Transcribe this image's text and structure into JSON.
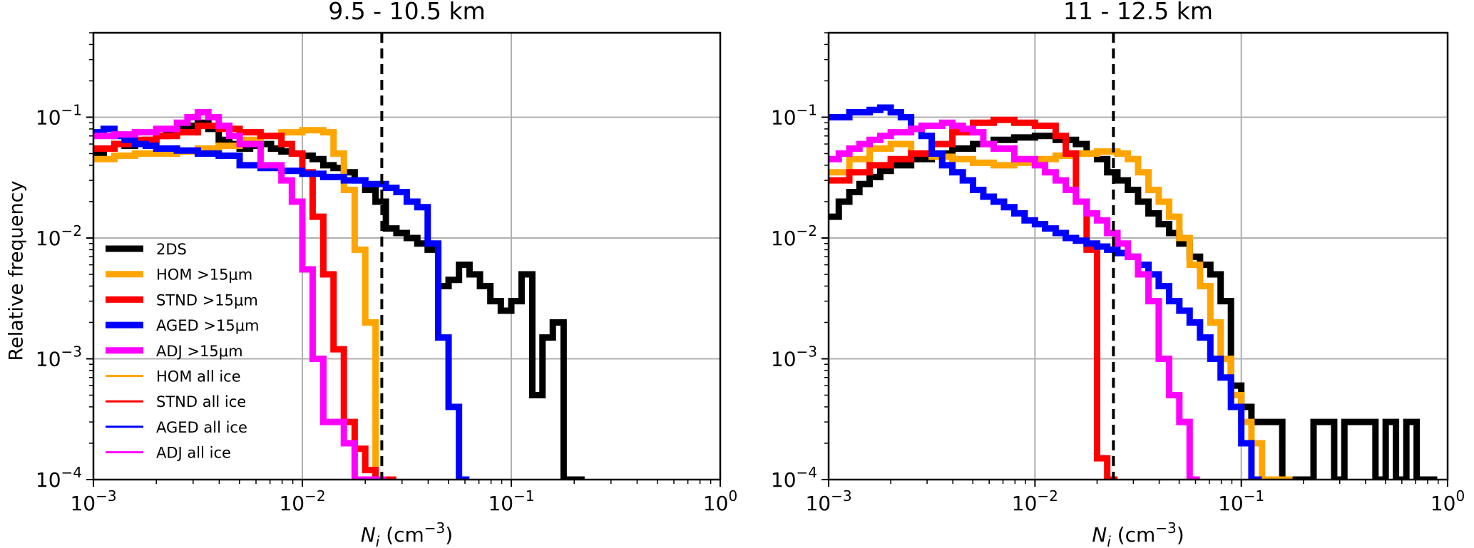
{
  "figure": {
    "ylabel": "Relative frequency",
    "xlabel_main": "N",
    "xlabel_sub": "i",
    "xlabel_unit_open": " (cm",
    "xlabel_unit_exp": "−3",
    "xlabel_unit_close": ")"
  },
  "colors": {
    "2DS": "#000000",
    "HOM": "#ffa500",
    "STND": "#ff0000",
    "AGED": "#0000ff",
    "ADJ": "#ff00ff",
    "grid": "#b0b0b0",
    "threshold": "#000000"
  },
  "legend": [
    {
      "label": "2DS",
      "color": "#000000",
      "style": "thick"
    },
    {
      "label": "HOM >15μm",
      "color": "#ffa500",
      "style": "thick"
    },
    {
      "label": "STND >15μm",
      "color": "#ff0000",
      "style": "thick"
    },
    {
      "label": "AGED >15μm",
      "color": "#0000ff",
      "style": "thick"
    },
    {
      "label": "ADJ >15μm",
      "color": "#ff00ff",
      "style": "thick"
    },
    {
      "label": "HOM all ice",
      "color": "#ffa500",
      "style": "thin"
    },
    {
      "label": "STND all ice",
      "color": "#ff0000",
      "style": "thin"
    },
    {
      "label": "AGED all ice",
      "color": "#0000ff",
      "style": "thin"
    },
    {
      "label": "ADJ all ice",
      "color": "#ff00ff",
      "style": "thin"
    }
  ],
  "ticks": {
    "x": [
      {
        "mant": "10",
        "exp": "−3",
        "v": 0.001
      },
      {
        "mant": "10",
        "exp": "−2",
        "v": 0.01
      },
      {
        "mant": "10",
        "exp": "−1",
        "v": 0.1
      },
      {
        "mant": "10",
        "exp": "0",
        "v": 1
      }
    ],
    "y": [
      {
        "mant": "10",
        "exp": "−4",
        "v": 0.0001
      },
      {
        "mant": "10",
        "exp": "−3",
        "v": 0.001
      },
      {
        "mant": "10",
        "exp": "−2",
        "v": 0.01
      },
      {
        "mant": "10",
        "exp": "−1",
        "v": 0.1
      }
    ]
  },
  "chart_data": [
    {
      "type": "line",
      "step": true,
      "title": "9.5 - 10.5 km",
      "xscale": "log",
      "yscale": "log",
      "xlim": [
        0.001,
        1
      ],
      "ylim": [
        0.0001,
        0.5
      ],
      "grid": true,
      "legend_position": "lower-left",
      "threshold_x": 0.024,
      "series": [
        {
          "name": "2DS",
          "color": "#000000",
          "width": "thick",
          "x": [
            0.001,
            0.00112,
            0.00126,
            0.00141,
            0.00158,
            0.00178,
            0.002,
            0.00224,
            0.00251,
            0.00282,
            0.00316,
            0.00355,
            0.00398,
            0.00447,
            0.00501,
            0.00562,
            0.00631,
            0.00708,
            0.00794,
            0.00891,
            0.01,
            0.0112,
            0.0126,
            0.0141,
            0.0158,
            0.0178,
            0.02,
            0.0224,
            0.0251,
            0.0282,
            0.0316,
            0.0355,
            0.0398,
            0.0447,
            0.0501,
            0.0562,
            0.0631,
            0.0708,
            0.0794,
            0.0891,
            0.1,
            0.112,
            0.126,
            0.141,
            0.158,
            0.178,
            0.2
          ],
          "y": [
            0.05,
            0.055,
            0.06,
            0.058,
            0.062,
            0.065,
            0.07,
            0.075,
            0.08,
            0.085,
            0.09,
            0.08,
            0.065,
            0.06,
            0.055,
            0.058,
            0.06,
            0.055,
            0.052,
            0.05,
            0.048,
            0.045,
            0.04,
            0.038,
            0.035,
            0.03,
            0.025,
            0.02,
            0.012,
            0.011,
            0.01,
            0.009,
            0.008,
            0.004,
            0.0045,
            0.006,
            0.005,
            0.004,
            0.003,
            0.0025,
            0.003,
            0.005,
            0.0005,
            0.0015,
            0.002,
            0.0001,
            0.0001
          ]
        },
        {
          "name": "HOM >15μm",
          "color": "#ffa500",
          "width": "thick",
          "x": [
            0.001,
            0.00126,
            0.00158,
            0.002,
            0.00251,
            0.00316,
            0.00398,
            0.00501,
            0.00631,
            0.00794,
            0.01,
            0.0126,
            0.0141,
            0.0158,
            0.0178,
            0.02,
            0.0224
          ],
          "y": [
            0.045,
            0.048,
            0.05,
            0.05,
            0.052,
            0.055,
            0.058,
            0.065,
            0.07,
            0.075,
            0.078,
            0.075,
            0.05,
            0.025,
            0.008,
            0.002,
            0.0001
          ]
        },
        {
          "name": "STND >15μm",
          "color": "#ff0000",
          "width": "thick",
          "x": [
            0.001,
            0.00126,
            0.00158,
            0.002,
            0.00251,
            0.00316,
            0.00398,
            0.00501,
            0.00631,
            0.00794,
            0.00891,
            0.01,
            0.0112,
            0.0126,
            0.0141,
            0.0158,
            0.0178,
            0.02,
            0.0224,
            0.0251
          ],
          "y": [
            0.055,
            0.06,
            0.065,
            0.07,
            0.075,
            0.085,
            0.08,
            0.075,
            0.07,
            0.06,
            0.05,
            0.035,
            0.015,
            0.005,
            0.0012,
            0.0003,
            0.00018,
            0.00012,
            0.0001,
            0.0001
          ]
        },
        {
          "name": "AGED >15μm",
          "color": "#0000ff",
          "width": "thick",
          "x": [
            0.001,
            0.00112,
            0.00126,
            0.00141,
            0.00158,
            0.00178,
            0.002,
            0.00251,
            0.00316,
            0.00398,
            0.00501,
            0.00631,
            0.00794,
            0.01,
            0.0126,
            0.0158,
            0.02,
            0.0251,
            0.0282,
            0.0316,
            0.0355,
            0.0398,
            0.0447,
            0.0501,
            0.0562
          ],
          "y": [
            0.075,
            0.08,
            0.07,
            0.065,
            0.06,
            0.058,
            0.055,
            0.053,
            0.05,
            0.048,
            0.04,
            0.038,
            0.036,
            0.034,
            0.032,
            0.03,
            0.028,
            0.026,
            0.024,
            0.02,
            0.018,
            0.009,
            0.0015,
            0.0004,
            0.0001
          ]
        },
        {
          "name": "ADJ >15μm",
          "color": "#ff00ff",
          "width": "thick",
          "x": [
            0.001,
            0.00126,
            0.00158,
            0.002,
            0.00251,
            0.00282,
            0.00316,
            0.00355,
            0.00398,
            0.00447,
            0.00501,
            0.00631,
            0.00794,
            0.00891,
            0.01,
            0.0112,
            0.0126,
            0.0141,
            0.0158,
            0.0178,
            0.02,
            0.0224
          ],
          "y": [
            0.07,
            0.072,
            0.075,
            0.08,
            0.09,
            0.1,
            0.11,
            0.1,
            0.085,
            0.07,
            0.06,
            0.04,
            0.03,
            0.02,
            0.0055,
            0.001,
            0.0003,
            0.0003,
            0.0002,
            0.0001,
            0.0001,
            0.0001
          ]
        }
      ]
    },
    {
      "type": "line",
      "step": true,
      "title": "11 - 12.5 km",
      "xscale": "log",
      "yscale": "log",
      "xlim": [
        0.001,
        1
      ],
      "ylim": [
        0.0001,
        0.5
      ],
      "grid": true,
      "threshold_x": 0.024,
      "series": [
        {
          "name": "2DS",
          "color": "#000000",
          "width": "thick",
          "x": [
            0.001,
            0.00112,
            0.00126,
            0.00141,
            0.00158,
            0.00178,
            0.002,
            0.00251,
            0.00316,
            0.00398,
            0.00501,
            0.00631,
            0.00794,
            0.01,
            0.0126,
            0.0158,
            0.0178,
            0.02,
            0.0224,
            0.0251,
            0.0282,
            0.0316,
            0.0355,
            0.0398,
            0.0447,
            0.0501,
            0.0562,
            0.0631,
            0.0708,
            0.0794,
            0.0891,
            0.1,
            0.112,
            0.126,
            0.141,
            0.158,
            0.178,
            0.224,
            0.282,
            0.316,
            0.447,
            0.501,
            0.562,
            0.631,
            0.708,
            0.794
          ],
          "y": [
            0.015,
            0.02,
            0.024,
            0.028,
            0.032,
            0.036,
            0.04,
            0.045,
            0.05,
            0.055,
            0.06,
            0.065,
            0.068,
            0.07,
            0.065,
            0.06,
            0.05,
            0.045,
            0.035,
            0.03,
            0.025,
            0.02,
            0.016,
            0.013,
            0.011,
            0.009,
            0.007,
            0.006,
            0.005,
            0.003,
            0.0006,
            0.0004,
            0.0003,
            0.0003,
            0.0003,
            0.0001,
            0.0001,
            0.0003,
            0.0001,
            0.0003,
            0.0001,
            0.0003,
            0.0001,
            0.0003,
            0.0001,
            0.0001
          ]
        },
        {
          "name": "HOM >15μm",
          "color": "#ffa500",
          "width": "thick",
          "x": [
            0.001,
            0.00126,
            0.00158,
            0.002,
            0.00251,
            0.00316,
            0.00398,
            0.00501,
            0.00631,
            0.00794,
            0.01,
            0.0126,
            0.0158,
            0.02,
            0.0251,
            0.0282,
            0.0316,
            0.0355,
            0.0398,
            0.0447,
            0.0501,
            0.0562,
            0.0631,
            0.0708,
            0.0794,
            0.0891,
            0.1,
            0.112,
            0.126,
            0.141,
            0.158
          ],
          "y": [
            0.035,
            0.045,
            0.055,
            0.06,
            0.05,
            0.047,
            0.045,
            0.042,
            0.04,
            0.042,
            0.045,
            0.048,
            0.05,
            0.052,
            0.05,
            0.045,
            0.035,
            0.025,
            0.02,
            0.015,
            0.01,
            0.006,
            0.004,
            0.002,
            0.001,
            0.0005,
            0.0003,
            0.0002,
            0.0001,
            0.0001,
            0.0001
          ]
        },
        {
          "name": "STND >15μm",
          "color": "#ff0000",
          "width": "thick",
          "x": [
            0.001,
            0.00126,
            0.00158,
            0.002,
            0.00251,
            0.00316,
            0.00398,
            0.00501,
            0.00631,
            0.00794,
            0.01,
            0.0126,
            0.0141,
            0.0158,
            0.0178,
            0.02,
            0.0224
          ],
          "y": [
            0.03,
            0.035,
            0.04,
            0.045,
            0.05,
            0.06,
            0.075,
            0.09,
            0.095,
            0.09,
            0.085,
            0.07,
            0.05,
            0.02,
            0.008,
            0.00015,
            0.0001
          ]
        },
        {
          "name": "AGED >15μm",
          "color": "#0000ff",
          "width": "thick",
          "x": [
            0.001,
            0.00126,
            0.00158,
            0.00178,
            0.002,
            0.00224,
            0.00251,
            0.00282,
            0.00316,
            0.00355,
            0.00398,
            0.00447,
            0.00501,
            0.00562,
            0.00631,
            0.00708,
            0.00794,
            0.00891,
            0.01,
            0.0112,
            0.0126,
            0.0141,
            0.0158,
            0.0178,
            0.02,
            0.0224,
            0.0251,
            0.0282,
            0.0316,
            0.0355,
            0.0398,
            0.0447,
            0.0501,
            0.0562,
            0.0631,
            0.0708,
            0.0794,
            0.0891,
            0.1,
            0.112
          ],
          "y": [
            0.1,
            0.11,
            0.115,
            0.12,
            0.11,
            0.1,
            0.08,
            0.07,
            0.05,
            0.04,
            0.035,
            0.03,
            0.025,
            0.022,
            0.02,
            0.018,
            0.016,
            0.014,
            0.013,
            0.012,
            0.011,
            0.01,
            0.0095,
            0.009,
            0.0085,
            0.008,
            0.0075,
            0.007,
            0.006,
            0.005,
            0.004,
            0.003,
            0.0025,
            0.002,
            0.0015,
            0.001,
            0.0007,
            0.0004,
            0.0002,
            0.0001
          ]
        },
        {
          "name": "ADJ >15μm",
          "color": "#ff00ff",
          "width": "thick",
          "x": [
            0.001,
            0.00112,
            0.00126,
            0.00141,
            0.00158,
            0.00178,
            0.002,
            0.00224,
            0.00251,
            0.00282,
            0.00316,
            0.00355,
            0.00398,
            0.00447,
            0.00501,
            0.00562,
            0.00631,
            0.00794,
            0.01,
            0.0112,
            0.0126,
            0.0141,
            0.0158,
            0.0178,
            0.02,
            0.0224,
            0.0251,
            0.0282,
            0.0316,
            0.0355,
            0.0398,
            0.0447,
            0.0501,
            0.0562
          ],
          "y": [
            0.045,
            0.05,
            0.055,
            0.06,
            0.065,
            0.07,
            0.075,
            0.075,
            0.08,
            0.085,
            0.085,
            0.09,
            0.085,
            0.08,
            0.075,
            0.06,
            0.055,
            0.045,
            0.04,
            0.035,
            0.03,
            0.025,
            0.02,
            0.016,
            0.014,
            0.011,
            0.009,
            0.007,
            0.005,
            0.003,
            0.001,
            0.0005,
            0.0003,
            0.0001
          ]
        }
      ]
    }
  ]
}
